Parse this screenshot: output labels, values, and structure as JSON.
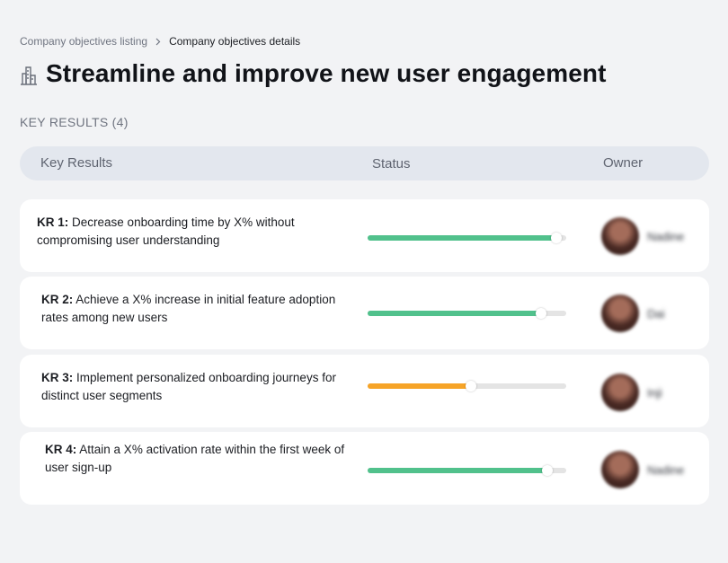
{
  "breadcrumb": {
    "parent": "Company objectives listing",
    "current": "Company objectives details"
  },
  "objective": {
    "title": "Streamline and improve new user engagement",
    "icon": "buildings-icon"
  },
  "key_results_label": "KEY RESULTS (4)",
  "table": {
    "headers": [
      "Key Results",
      "Status",
      "Owner"
    ]
  },
  "colors": {
    "progress_green": "#51c18c",
    "progress_orange": "#f6a428",
    "track": "#e4e4e4"
  },
  "key_results": [
    {
      "id": "KR 1:",
      "text": "Decrease onboarding time by X% without compromising user understanding",
      "progress": 0.95,
      "color": "#51c18c",
      "owner": "Nadine"
    },
    {
      "id": "KR 2:",
      "text": "Achieve a X% increase in initial feature adoption rates among new users",
      "progress": 0.875,
      "color": "#51c18c",
      "owner": "Dai"
    },
    {
      "id": "KR 3:",
      "text": "Implement personalized onboarding journeys for distinct user segments",
      "progress": 0.52,
      "color": "#f6a428",
      "owner": "Inji"
    },
    {
      "id": "KR 4:",
      "text": "Attain a X% activation rate within the first week of user sign-up",
      "progress": 0.905,
      "color": "#51c18c",
      "owner": "Nadine"
    }
  ]
}
